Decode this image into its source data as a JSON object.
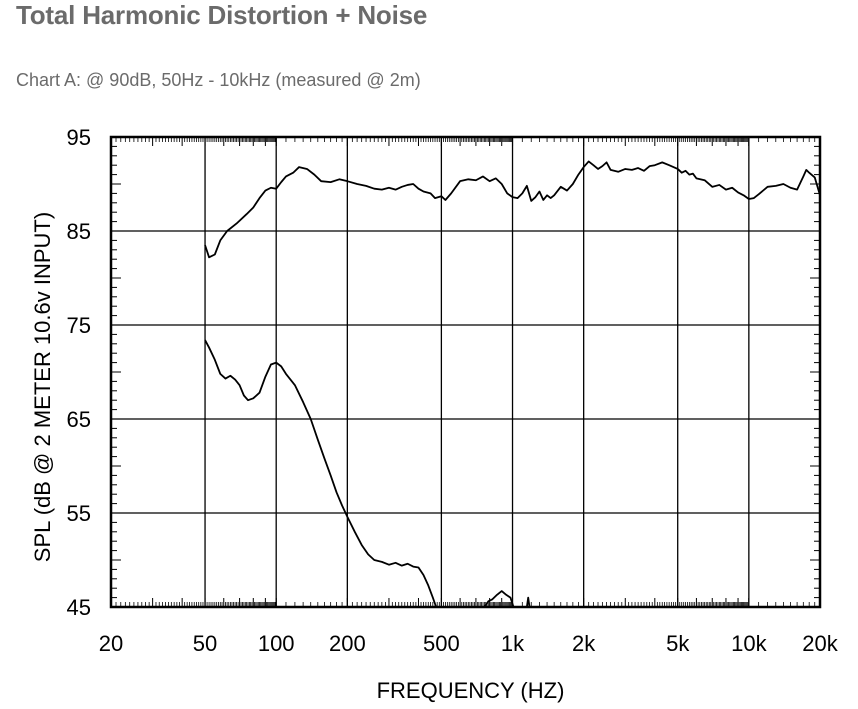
{
  "page": {
    "title": "Total Harmonic Distortion + Noise",
    "subtitle": "Chart A: @ 90dB, 50Hz - 10kHz (measured @ 2m)"
  },
  "chart_data": {
    "type": "line",
    "xscale": "log",
    "xlim": [
      20,
      20000
    ],
    "ylim": [
      45,
      95
    ],
    "grid": true,
    "xlabel": "FREQUENCY  (HZ)",
    "ylabel": "SPL (dB @ 2 METER 10.6v  INPUT)",
    "x_ticks": [
      {
        "value": 20,
        "label": "20"
      },
      {
        "value": 50,
        "label": "50"
      },
      {
        "value": 100,
        "label": "100"
      },
      {
        "value": 200,
        "label": "200"
      },
      {
        "value": 500,
        "label": "500"
      },
      {
        "value": 1000,
        "label": "1k"
      },
      {
        "value": 2000,
        "label": "2k"
      },
      {
        "value": 5000,
        "label": "5k"
      },
      {
        "value": 10000,
        "label": "10k"
      },
      {
        "value": 20000,
        "label": "20k"
      }
    ],
    "y_ticks": [
      {
        "value": 95,
        "label": "95"
      },
      {
        "value": 85,
        "label": "85"
      },
      {
        "value": 75,
        "label": "75"
      },
      {
        "value": 65,
        "label": "65"
      },
      {
        "value": 55,
        "label": "55"
      },
      {
        "value": 45,
        "label": "45"
      }
    ],
    "series": [
      {
        "color": "#000000",
        "points": [
          [
            50,
            83.5
          ],
          [
            52,
            82.2
          ],
          [
            55,
            82.5
          ],
          [
            58,
            84
          ],
          [
            62,
            85
          ],
          [
            68,
            85.8
          ],
          [
            75,
            86.8
          ],
          [
            80,
            87.5
          ],
          [
            85,
            88.5
          ],
          [
            90,
            89.3
          ],
          [
            95,
            89.6
          ],
          [
            100,
            89.5
          ],
          [
            105,
            90.2
          ],
          [
            110,
            90.8
          ],
          [
            118,
            91.2
          ],
          [
            125,
            91.8
          ],
          [
            135,
            91.6
          ],
          [
            145,
            91.0
          ],
          [
            155,
            90.3
          ],
          [
            170,
            90.2
          ],
          [
            185,
            90.5
          ],
          [
            200,
            90.3
          ],
          [
            220,
            90.0
          ],
          [
            240,
            89.8
          ],
          [
            260,
            89.5
          ],
          [
            280,
            89.4
          ],
          [
            300,
            89.6
          ],
          [
            320,
            89.4
          ],
          [
            340,
            89.7
          ],
          [
            360,
            89.9
          ],
          [
            380,
            90.0
          ],
          [
            400,
            89.5
          ],
          [
            420,
            89.2
          ],
          [
            450,
            89.0
          ],
          [
            470,
            88.5
          ],
          [
            500,
            88.7
          ],
          [
            520,
            88.3
          ],
          [
            550,
            89.0
          ],
          [
            600,
            90.3
          ],
          [
            650,
            90.5
          ],
          [
            700,
            90.4
          ],
          [
            750,
            90.8
          ],
          [
            800,
            90.3
          ],
          [
            850,
            90.6
          ],
          [
            900,
            90.0
          ],
          [
            950,
            89.0
          ],
          [
            1000,
            88.6
          ],
          [
            1050,
            88.5
          ],
          [
            1100,
            89.0
          ],
          [
            1150,
            89.8
          ],
          [
            1200,
            88.2
          ],
          [
            1250,
            88.6
          ],
          [
            1300,
            89.2
          ],
          [
            1350,
            88.3
          ],
          [
            1400,
            88.8
          ],
          [
            1450,
            88.5
          ],
          [
            1500,
            88.8
          ],
          [
            1600,
            89.7
          ],
          [
            1700,
            89.3
          ],
          [
            1800,
            90.0
          ],
          [
            1900,
            91.0
          ],
          [
            2000,
            91.8
          ],
          [
            2100,
            92.4
          ],
          [
            2200,
            92.0
          ],
          [
            2300,
            91.6
          ],
          [
            2400,
            91.9
          ],
          [
            2500,
            92.3
          ],
          [
            2600,
            91.5
          ],
          [
            2800,
            91.3
          ],
          [
            3000,
            91.6
          ],
          [
            3200,
            91.5
          ],
          [
            3400,
            91.7
          ],
          [
            3600,
            91.4
          ],
          [
            3800,
            91.9
          ],
          [
            4000,
            92.0
          ],
          [
            4300,
            92.3
          ],
          [
            4600,
            92.0
          ],
          [
            5000,
            91.6
          ],
          [
            5200,
            91.2
          ],
          [
            5400,
            91.4
          ],
          [
            5600,
            91.0
          ],
          [
            5800,
            91.1
          ],
          [
            6000,
            90.6
          ],
          [
            6500,
            90.4
          ],
          [
            7000,
            89.7
          ],
          [
            7500,
            89.9
          ],
          [
            8000,
            89.4
          ],
          [
            8500,
            89.6
          ],
          [
            9000,
            89.1
          ],
          [
            9500,
            88.8
          ],
          [
            10000,
            88.4
          ],
          [
            10500,
            88.5
          ],
          [
            11000,
            88.9
          ],
          [
            12000,
            89.7
          ],
          [
            13000,
            89.8
          ],
          [
            14000,
            90.0
          ],
          [
            15000,
            89.6
          ],
          [
            16000,
            89.4
          ],
          [
            17000,
            90.8
          ],
          [
            17500,
            91.5
          ],
          [
            18000,
            91.2
          ],
          [
            19000,
            90.7
          ],
          [
            20000,
            88.8
          ]
        ]
      },
      {
        "color": "#000000",
        "points": [
          [
            50,
            73.4
          ],
          [
            52,
            72.6
          ],
          [
            55,
            71.3
          ],
          [
            58,
            69.8
          ],
          [
            61,
            69.3
          ],
          [
            64,
            69.6
          ],
          [
            67,
            69.2
          ],
          [
            70,
            68.6
          ],
          [
            73,
            67.5
          ],
          [
            76,
            67.0
          ],
          [
            80,
            67.2
          ],
          [
            85,
            67.8
          ],
          [
            90,
            69.5
          ],
          [
            95,
            70.8
          ],
          [
            100,
            71.0
          ],
          [
            105,
            70.6
          ],
          [
            110,
            69.8
          ],
          [
            120,
            68.6
          ],
          [
            130,
            66.8
          ],
          [
            140,
            65.0
          ],
          [
            150,
            62.8
          ],
          [
            160,
            60.8
          ],
          [
            170,
            59.0
          ],
          [
            180,
            57.2
          ],
          [
            190,
            55.8
          ],
          [
            200,
            54.6
          ],
          [
            215,
            53.0
          ],
          [
            230,
            51.6
          ],
          [
            245,
            50.6
          ],
          [
            260,
            50.0
          ],
          [
            280,
            49.8
          ],
          [
            300,
            49.5
          ],
          [
            320,
            49.7
          ],
          [
            340,
            49.4
          ],
          [
            360,
            49.6
          ],
          [
            380,
            49.3
          ],
          [
            400,
            49.2
          ],
          [
            420,
            48.4
          ],
          [
            440,
            47.3
          ],
          [
            460,
            46.0
          ],
          [
            475,
            45.0
          ]
        ]
      },
      {
        "color": "#000000",
        "points": [
          [
            760,
            45.0
          ],
          [
            790,
            45.6
          ],
          [
            820,
            45.8
          ],
          [
            860,
            46.3
          ],
          [
            900,
            46.7
          ],
          [
            940,
            46.3
          ],
          [
            980,
            46.0
          ],
          [
            1010,
            45.0
          ]
        ]
      },
      {
        "color": "#000000",
        "points": [
          [
            1150,
            45.0
          ],
          [
            1165,
            46.0
          ],
          [
            1180,
            45.0
          ]
        ]
      }
    ]
  }
}
